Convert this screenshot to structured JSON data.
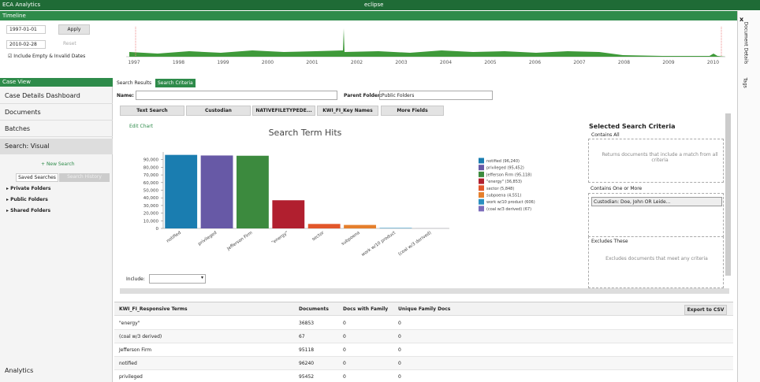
{
  "app_bar": {
    "title": "ECA Analytics",
    "product": "eclipse"
  },
  "timeline": {
    "title": "Timeline",
    "start_date": "1997-01-01",
    "end_date": "2010-02-28",
    "apply": "Apply",
    "reset": "Reset",
    "include_empty": "Include Empty & Invalid Dates",
    "years": [
      "1997",
      "1998",
      "1999",
      "2000",
      "2001",
      "2002",
      "2003",
      "2004",
      "2005",
      "2006",
      "2007",
      "2008",
      "2009",
      "2010"
    ]
  },
  "side_tabs": [
    "Document Details",
    "Tags"
  ],
  "case_view": {
    "title": "Case View",
    "items": [
      "Case Details Dashboard",
      "Documents",
      "Batches",
      "Search: Visual"
    ],
    "new_search": "New Search",
    "tabs": [
      "Saved Searches",
      "Search History"
    ],
    "folders": [
      "Private Folders",
      "Public Folders",
      "Shared Folders"
    ],
    "footer": "Analytics"
  },
  "search": {
    "tabs": [
      "Search Results",
      "Search Criteria"
    ],
    "name_label": "Name:",
    "parent_label": "Parent Folder:",
    "parent_value": "Public Folders",
    "fields": [
      "Text Search",
      "Custodian",
      "NATIVEFILETYPEDE...",
      "KWI_FI_Key Names",
      "More Fields"
    ],
    "edit_chart": "Edit Chart",
    "include_label": "Include:"
  },
  "chart_data": {
    "type": "bar",
    "title": "Search Term Hits",
    "categories": [
      "notified",
      "privileged",
      "Jefferson Firm",
      "\"energy\"",
      "sector",
      "subpoena",
      "work w/10 product",
      "(coal w/3 derived)"
    ],
    "values": [
      96240,
      95452,
      95118,
      36853,
      5848,
      4551,
      606,
      67
    ],
    "colors": [
      "#1a7db0",
      "#6759a6",
      "#3c8a3e",
      "#b11f2f",
      "#e2572b",
      "#e57f2c",
      "#2a8fc0",
      "#7b6cbb"
    ],
    "legend": [
      "notified (96,240)",
      "privileged (95,452)",
      "Jefferson Firm (95,118)",
      "\"energy\" (36,853)",
      "sector (5,848)",
      "subpoena (4,551)",
      "work w/10 product (606)",
      "(coal w/3 derived) (67)"
    ],
    "ylim": [
      0,
      100000
    ],
    "yticks": [
      0,
      {
        "value": 10000,
        "label": "10,000"
      },
      {
        "value": 20000,
        "label": "20,000"
      },
      {
        "value": 30000,
        "label": "30,000"
      },
      {
        "value": 40000,
        "label": "40,000"
      },
      {
        "value": 50000,
        "label": "50,000"
      },
      {
        "value": 60000,
        "label": "60,000"
      },
      {
        "value": 70000,
        "label": "70,000"
      },
      {
        "value": 80000,
        "label": "80,000"
      },
      {
        "value": 90000,
        "label": "90,000"
      }
    ]
  },
  "criteria": {
    "title": "Selected Search Criteria",
    "contains_all": "Contains All",
    "contains_all_hint": "Returns documents that include a match from all criteria",
    "contains_one": "Contains One or More",
    "contains_one_item": "Custodian: Doe, John OR Leide...",
    "excludes": "Excludes These",
    "excludes_hint": "Excludes documents that meet any criteria"
  },
  "table": {
    "columns": [
      "KWI_FI_Responsive Terms",
      "Documents",
      "Docs with Family",
      "Unique Family Docs"
    ],
    "export": "Export to CSV",
    "rows": [
      [
        "\"energy\"",
        "36853",
        "0",
        "0"
      ],
      [
        "(coal w/3 derived)",
        "67",
        "0",
        "0"
      ],
      [
        "Jefferson Firm",
        "95118",
        "0",
        "0"
      ],
      [
        "notified",
        "96240",
        "0",
        "0"
      ],
      [
        "privileged",
        "95452",
        "0",
        "0"
      ]
    ]
  }
}
